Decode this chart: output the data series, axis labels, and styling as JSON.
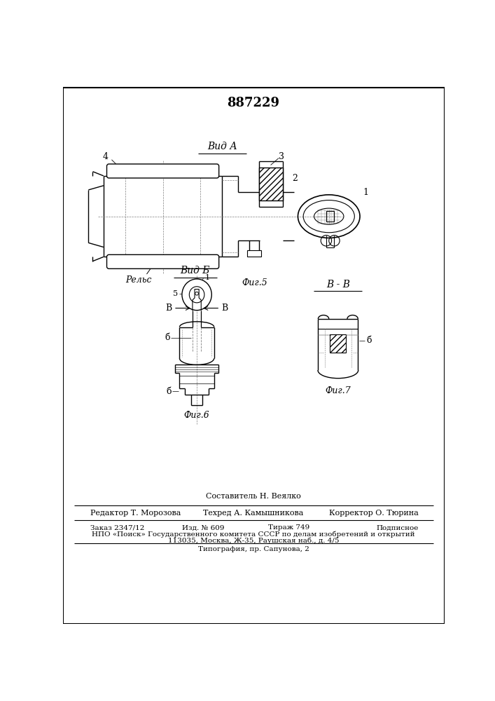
{
  "title_number": "887229",
  "background_color": "#ffffff",
  "footer_composer": "Составитель Н. Веялко",
  "footer_line1_left": "Редактор Т. Морозова",
  "footer_line1_mid": "Техред А. Камышникова",
  "footer_line1_right": "Корректор О. Тюрина",
  "footer_line2a": "Заказ 2347/12",
  "footer_line2b": "Изд. № 609",
  "footer_line2c": "Тираж 749",
  "footer_line2d": "Подписное",
  "footer_line3": "НПО «Поиск» Государственного комитета СССР по делам изобретений и открытий",
  "footer_line4": "113035, Москва, Ж-35, Раушская наб., д. 4/5",
  "footer_line5": "Типография, пр. Сапунова, 2",
  "fig5_label": "Фиг.5",
  "fig6_label": "Фиг.6",
  "fig7_label": "Фиг.7",
  "view_a_label": "Вид А",
  "view_b_label": "Вид Б",
  "view_bb_label": "В - В",
  "relstext": "Рельс",
  "label1": "1",
  "label2": "2",
  "label3": "3",
  "label4": "4",
  "label5": "5",
  "label6": "б"
}
